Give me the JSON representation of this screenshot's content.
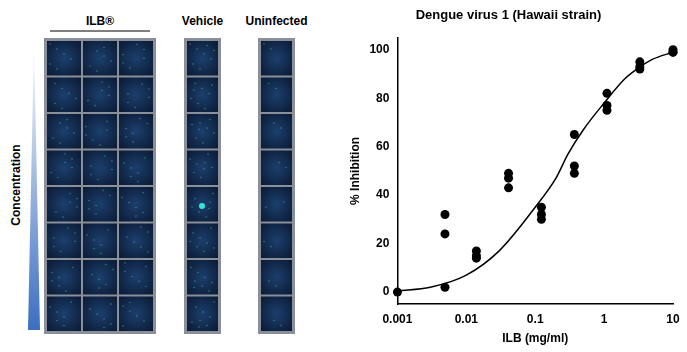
{
  "panel": {
    "columns": [
      "ILB®",
      "Vehicle",
      "Uninfected"
    ],
    "row_label": "Concentration"
  },
  "chart_data": {
    "type": "scatter",
    "title": "Dengue virus 1 (Hawaii strain)",
    "x_label": "ILB (mg/ml)",
    "y_label": "% Inhibition",
    "log": "x",
    "grid": false,
    "xlim": [
      0.001,
      10
    ],
    "xticks": [
      0.001,
      0.01,
      0.1,
      1,
      10
    ],
    "ylim": [
      -5,
      105
    ],
    "yticks": [
      0,
      20,
      40,
      60,
      80,
      100
    ],
    "series": [
      {
        "type": "scatter",
        "marker": "circle",
        "color": "#000000",
        "x": [
          0.001,
          0.0049,
          0.0049,
          0.0049,
          0.014,
          0.014,
          0.014,
          0.041,
          0.041,
          0.041,
          0.123,
          0.123,
          0.123,
          0.37,
          0.37,
          0.37,
          1.1,
          1.1,
          1.1,
          3.3,
          3.3,
          3.3,
          10,
          10,
          10
        ],
        "values": [
          0,
          32,
          24,
          2,
          17,
          15,
          14,
          49,
          47,
          43,
          35,
          32,
          30,
          65,
          52,
          49,
          82,
          77,
          75,
          95,
          93,
          92,
          100,
          99,
          99
        ]
      },
      {
        "type": "line",
        "line_style": "solid",
        "color": "#000000",
        "x": [
          0.001,
          0.003,
          0.01,
          0.03,
          0.1,
          0.2,
          0.3,
          0.5,
          1,
          2,
          3,
          5,
          10
        ],
        "values": [
          0.5,
          2,
          7,
          17,
          35,
          47,
          57,
          67,
          78,
          88,
          92,
          96,
          99
        ]
      }
    ]
  }
}
